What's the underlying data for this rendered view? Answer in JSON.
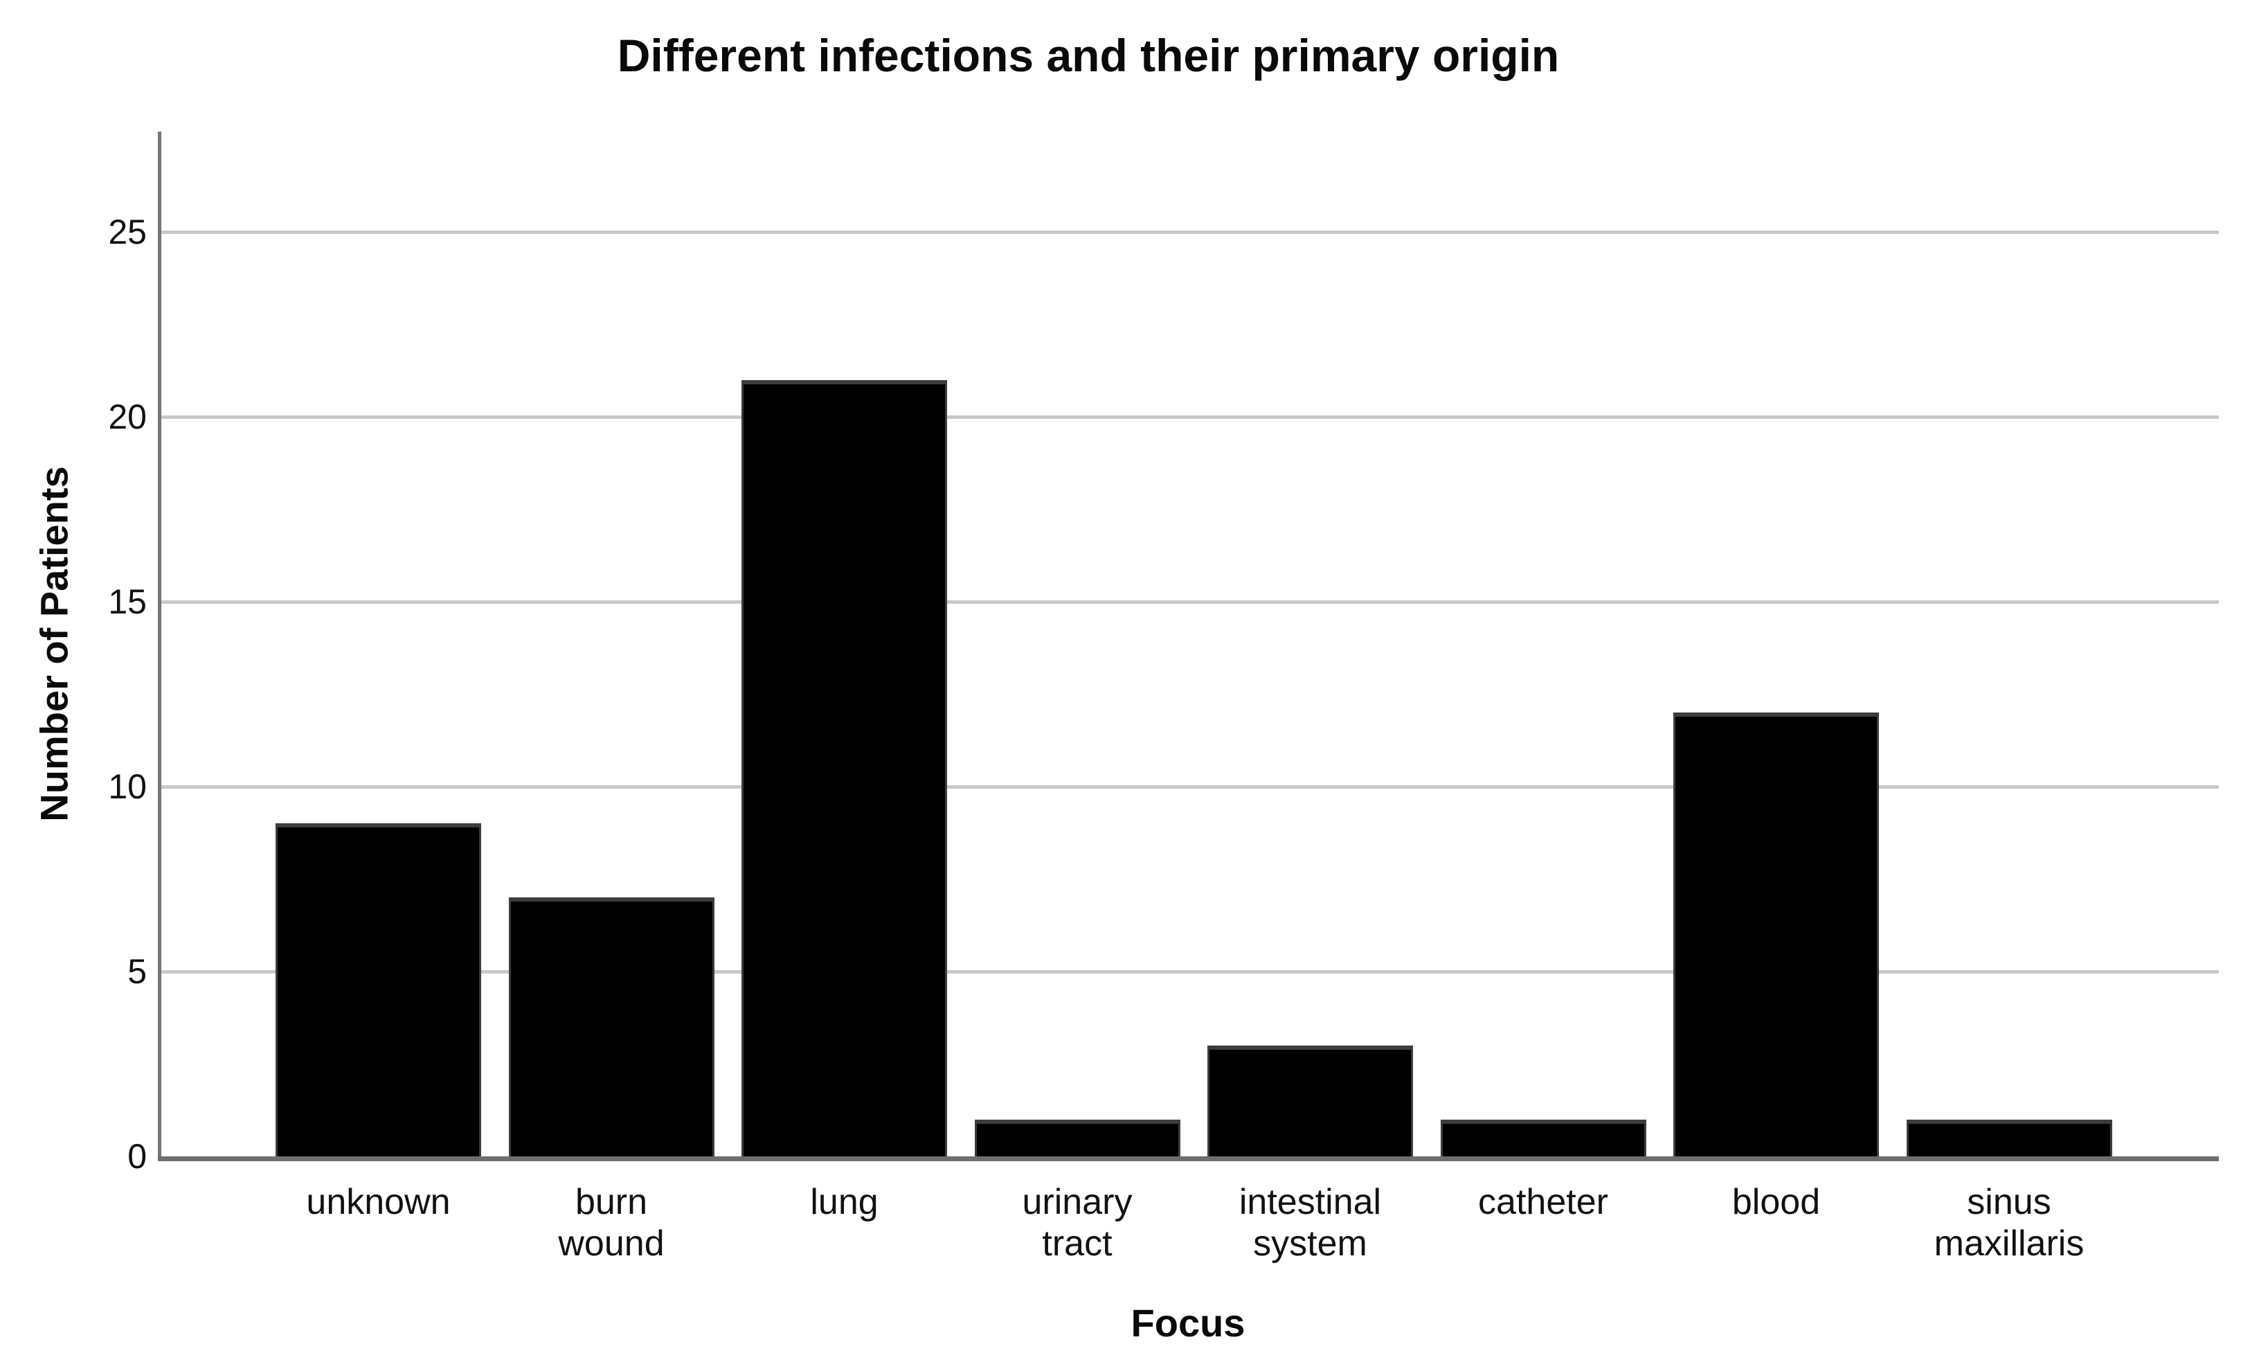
{
  "chart_data": {
    "type": "bar",
    "title": "Different infections and their primary origin",
    "xlabel": "Focus",
    "ylabel": "Number of Patients",
    "categories": [
      "unknown",
      "burn\nwound",
      "lung",
      "urinary\ntract",
      "intestinal\nsystem",
      "catheter",
      "blood",
      "sinus\nmaxillaris"
    ],
    "values": [
      9,
      7,
      21,
      1,
      3,
      1,
      12,
      1
    ],
    "yticks": [
      0,
      5,
      10,
      15,
      20,
      25
    ],
    "ylim": [
      0,
      27.7
    ],
    "grid": "horizontal-only",
    "legend": "none",
    "colors": {
      "bar_fill": "#000000",
      "bar_edge": "#3d3d3d",
      "gridline": "#c9c9c9",
      "axis_line": "#757575",
      "background": "#ffffff",
      "text": "#0a0a0a"
    }
  }
}
